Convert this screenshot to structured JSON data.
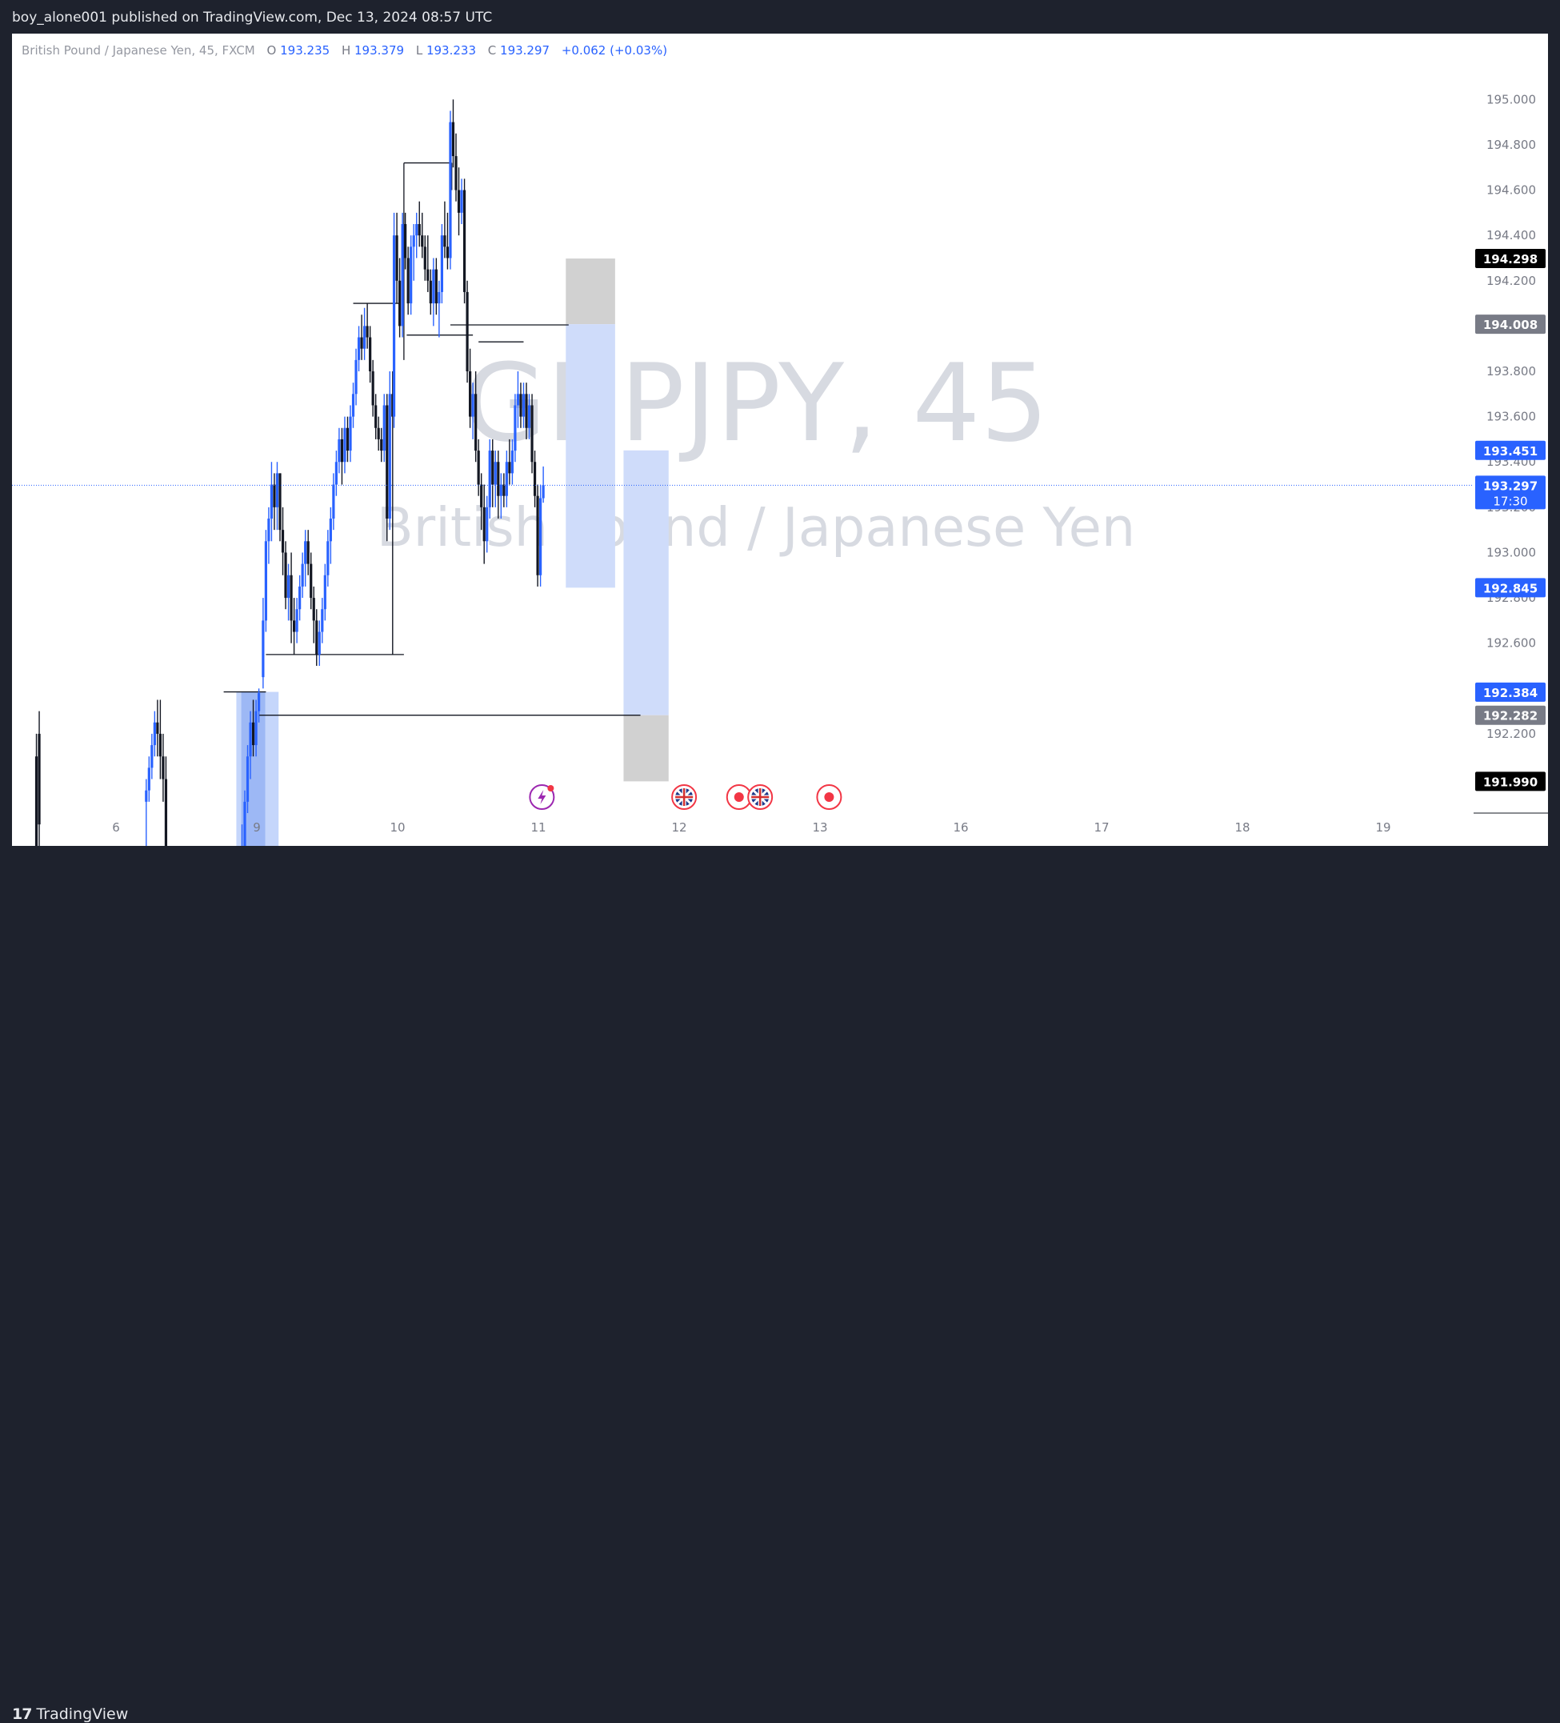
{
  "publish_line": "boy_alone001 published on TradingView.com, Dec 13, 2024 08:57 UTC",
  "footer": {
    "brand": "TradingView"
  },
  "colors": {
    "up": "#2962ff",
    "down": "#131722",
    "zone_blue": "#c5d6fb",
    "zone_grey": "#c9c9c9",
    "accent": "#2962ff"
  },
  "chart_data": {
    "type": "candlestick",
    "symbol": "GBPJPY",
    "interval": "45",
    "header": {
      "instrument": "British Pound / Japanese Yen, 45, FXCM",
      "o_label": "O",
      "o": "193.235",
      "h_label": "H",
      "h": "193.379",
      "l_label": "L",
      "l": "193.233",
      "c_label": "C",
      "c": "193.297",
      "change": "+0.062 (+0.03%)"
    },
    "watermark": {
      "symbol_line": "GBPJPY, 45",
      "name_line": "British Pound / Japanese Yen"
    },
    "price_axis": {
      "min": 191.85,
      "max": 195.1,
      "ticks": [
        "195.000",
        "194.800",
        "194.600",
        "194.400",
        "194.200",
        "194.000",
        "193.800",
        "193.600",
        "193.400",
        "193.200",
        "193.000",
        "192.800",
        "192.600",
        "192.400",
        "192.200"
      ]
    },
    "time_axis": {
      "labels": [
        {
          "text": "6",
          "bar": 0
        },
        {
          "text": "9",
          "bar": 10
        },
        {
          "text": "10",
          "bar": 20
        },
        {
          "text": "11",
          "bar": 30
        },
        {
          "text": "12",
          "bar": 40
        },
        {
          "text": "13",
          "bar": 50
        },
        {
          "text": "16",
          "bar": 60
        },
        {
          "text": "17",
          "bar": 70
        },
        {
          "text": "18",
          "bar": 80
        },
        {
          "text": "19",
          "bar": 90
        }
      ]
    },
    "price_labels": [
      {
        "value": "194.298",
        "style": "black"
      },
      {
        "value": "194.008",
        "style": "grey"
      },
      {
        "value": "193.451",
        "style": "blue"
      },
      {
        "value": "193.297",
        "style": "blue",
        "sub": "17:30"
      },
      {
        "value": "192.845",
        "style": "blue"
      },
      {
        "value": "192.384",
        "style": "blue"
      },
      {
        "value": "192.282",
        "style": "grey"
      },
      {
        "value": "191.990",
        "style": "black"
      }
    ],
    "last_price": 193.297,
    "candles": [
      [
        -4.8,
        192.1,
        192.2,
        191.6,
        191.7
      ],
      [
        -4.6,
        192.2,
        192.3,
        191.6,
        191.8
      ],
      [
        3.0,
        191.9,
        192.0,
        191.7,
        191.95
      ],
      [
        3.2,
        191.95,
        192.1,
        191.9,
        192.05
      ],
      [
        3.4,
        192.05,
        192.2,
        192.0,
        192.15
      ],
      [
        3.6,
        192.15,
        192.3,
        192.1,
        192.25
      ],
      [
        3.8,
        192.25,
        192.35,
        192.1,
        192.2
      ],
      [
        4.0,
        192.2,
        192.35,
        192.0,
        192.1
      ],
      [
        4.2,
        192.1,
        192.2,
        191.9,
        192.0
      ],
      [
        4.4,
        192.0,
        192.1,
        191.6,
        191.7
      ],
      [
        9.6,
        191.5,
        191.6,
        191.4,
        191.55
      ],
      [
        9.8,
        191.55,
        191.8,
        191.5,
        191.7
      ],
      [
        10.0,
        191.7,
        191.95,
        191.65,
        191.9
      ],
      [
        10.2,
        191.9,
        192.15,
        191.85,
        192.1
      ],
      [
        10.4,
        192.1,
        192.3,
        192.0,
        192.25
      ],
      [
        10.6,
        192.25,
        192.35,
        192.1,
        192.15
      ],
      [
        10.8,
        192.15,
        192.35,
        192.1,
        192.3
      ],
      [
        11.0,
        192.3,
        192.4,
        192.25,
        192.38
      ],
      [
        11.3,
        192.45,
        192.8,
        192.4,
        192.7
      ],
      [
        11.5,
        192.7,
        193.1,
        192.65,
        193.05
      ],
      [
        11.7,
        193.05,
        193.2,
        192.95,
        193.15
      ],
      [
        11.9,
        193.15,
        193.4,
        193.05,
        193.3
      ],
      [
        12.1,
        193.3,
        193.35,
        193.1,
        193.2
      ],
      [
        12.3,
        193.2,
        193.4,
        193.1,
        193.35
      ],
      [
        12.5,
        193.35,
        193.35,
        193.05,
        193.1
      ],
      [
        12.7,
        193.1,
        193.2,
        192.9,
        193.0
      ],
      [
        12.9,
        193.0,
        193.05,
        192.75,
        192.8
      ],
      [
        13.1,
        192.8,
        192.95,
        192.7,
        192.9
      ],
      [
        13.3,
        192.9,
        193.0,
        192.6,
        192.7
      ],
      [
        13.5,
        192.7,
        192.8,
        192.55,
        192.65
      ],
      [
        13.7,
        192.65,
        192.8,
        192.6,
        192.75
      ],
      [
        13.9,
        192.75,
        192.9,
        192.7,
        192.85
      ],
      [
        14.1,
        192.85,
        193.0,
        192.8,
        192.95
      ],
      [
        14.3,
        192.95,
        193.1,
        192.85,
        193.05
      ],
      [
        14.5,
        193.05,
        193.1,
        192.9,
        192.95
      ],
      [
        14.7,
        192.95,
        193.0,
        192.75,
        192.8
      ],
      [
        14.9,
        192.8,
        192.85,
        192.6,
        192.7
      ],
      [
        15.1,
        192.7,
        192.75,
        192.5,
        192.55
      ],
      [
        15.3,
        192.55,
        192.7,
        192.5,
        192.65
      ],
      [
        15.5,
        192.65,
        192.8,
        192.6,
        192.75
      ],
      [
        15.7,
        192.75,
        192.95,
        192.7,
        192.9
      ],
      [
        15.9,
        192.9,
        193.1,
        192.85,
        193.05
      ],
      [
        16.1,
        193.05,
        193.2,
        192.95,
        193.15
      ],
      [
        16.3,
        193.15,
        193.35,
        193.1,
        193.3
      ],
      [
        16.5,
        193.3,
        193.45,
        193.25,
        193.4
      ],
      [
        16.7,
        193.4,
        193.55,
        193.35,
        193.5
      ],
      [
        16.9,
        193.5,
        193.55,
        193.3,
        193.4
      ],
      [
        17.1,
        193.4,
        193.6,
        193.35,
        193.55
      ],
      [
        17.3,
        193.55,
        193.6,
        193.4,
        193.45
      ],
      [
        17.5,
        193.45,
        193.65,
        193.4,
        193.6
      ],
      [
        17.7,
        193.6,
        193.75,
        193.55,
        193.7
      ],
      [
        17.9,
        193.7,
        193.9,
        193.65,
        193.85
      ],
      [
        18.1,
        193.85,
        194.0,
        193.8,
        193.95
      ],
      [
        18.3,
        193.95,
        194.05,
        193.85,
        193.9
      ],
      [
        18.5,
        193.9,
        194.08,
        193.85,
        194.0
      ],
      [
        18.7,
        194.0,
        194.1,
        193.9,
        193.95
      ],
      [
        18.9,
        193.95,
        194.0,
        193.75,
        193.8
      ],
      [
        19.1,
        193.8,
        193.85,
        193.6,
        193.65
      ],
      [
        19.3,
        193.65,
        193.7,
        193.5,
        193.55
      ],
      [
        19.5,
        193.55,
        193.6,
        193.45,
        193.5
      ],
      [
        19.7,
        193.5,
        193.55,
        193.4,
        193.45
      ],
      [
        19.9,
        193.45,
        193.7,
        193.4,
        193.65
      ],
      [
        20.1,
        193.65,
        193.7,
        193.05,
        193.15
      ],
      [
        20.3,
        193.15,
        193.8,
        193.1,
        193.7
      ],
      [
        20.5,
        193.7,
        193.8,
        192.55,
        193.6
      ],
      [
        20.6,
        193.6,
        194.5,
        193.55,
        194.4
      ],
      [
        20.8,
        194.4,
        194.5,
        194.1,
        194.2
      ],
      [
        21.0,
        194.2,
        194.3,
        193.95,
        194.0
      ],
      [
        21.2,
        194.0,
        194.5,
        193.95,
        194.45
      ],
      [
        21.4,
        194.45,
        194.5,
        194.25,
        194.3
      ],
      [
        21.6,
        194.3,
        194.35,
        194.05,
        194.1
      ],
      [
        21.8,
        194.1,
        194.4,
        194.05,
        194.35
      ],
      [
        22.0,
        194.35,
        194.45,
        194.2,
        194.4
      ],
      [
        22.2,
        194.4,
        194.5,
        194.3,
        194.45
      ],
      [
        22.4,
        194.45,
        194.55,
        194.35,
        194.4
      ],
      [
        22.6,
        194.4,
        194.5,
        194.3,
        194.35
      ],
      [
        22.8,
        194.35,
        194.4,
        194.2,
        194.25
      ],
      [
        23.0,
        194.25,
        194.4,
        194.15,
        194.2
      ],
      [
        23.2,
        194.2,
        194.25,
        194.05,
        194.1
      ],
      [
        23.4,
        194.1,
        194.3,
        194.0,
        194.25
      ],
      [
        23.6,
        194.25,
        194.3,
        194.05,
        194.1
      ],
      [
        23.8,
        194.1,
        194.2,
        193.95,
        194.15
      ],
      [
        24.0,
        194.15,
        194.45,
        194.1,
        194.4
      ],
      [
        24.2,
        194.4,
        194.55,
        194.3,
        194.35
      ],
      [
        24.4,
        194.35,
        194.5,
        194.25,
        194.3
      ],
      [
        24.6,
        194.3,
        194.95,
        194.25,
        194.9
      ],
      [
        24.8,
        194.9,
        195.0,
        194.7,
        194.75
      ],
      [
        25.0,
        194.75,
        194.85,
        194.55,
        194.6
      ],
      [
        25.2,
        194.6,
        194.7,
        194.4,
        194.5
      ],
      [
        25.4,
        194.5,
        194.65,
        194.45,
        194.6
      ],
      [
        25.6,
        194.6,
        194.65,
        194.1,
        194.15
      ],
      [
        25.8,
        194.15,
        194.2,
        193.75,
        193.8
      ],
      [
        26.0,
        193.8,
        193.9,
        193.55,
        193.6
      ],
      [
        26.2,
        193.6,
        193.75,
        193.5,
        193.7
      ],
      [
        26.4,
        193.7,
        193.8,
        193.4,
        193.45
      ],
      [
        26.6,
        193.45,
        193.5,
        193.25,
        193.3
      ],
      [
        26.8,
        193.3,
        193.35,
        193.1,
        193.2
      ],
      [
        27.0,
        193.2,
        193.3,
        192.95,
        193.05
      ],
      [
        27.2,
        193.05,
        193.25,
        193.0,
        193.2
      ],
      [
        27.4,
        193.2,
        193.5,
        193.15,
        193.45
      ],
      [
        27.6,
        193.45,
        193.5,
        193.2,
        193.3
      ],
      [
        27.8,
        193.3,
        193.45,
        193.2,
        193.4
      ],
      [
        28.0,
        193.4,
        193.45,
        193.15,
        193.25
      ],
      [
        28.2,
        193.25,
        193.35,
        193.15,
        193.3
      ],
      [
        28.4,
        193.3,
        193.35,
        193.2,
        193.25
      ],
      [
        28.6,
        193.25,
        193.45,
        193.2,
        193.4
      ],
      [
        28.8,
        193.4,
        193.5,
        193.3,
        193.35
      ],
      [
        29.0,
        193.35,
        193.5,
        193.3,
        193.45
      ],
      [
        29.2,
        193.45,
        193.7,
        193.4,
        193.65
      ],
      [
        29.4,
        193.65,
        193.8,
        193.55,
        193.7
      ],
      [
        29.6,
        193.7,
        193.75,
        193.55,
        193.6
      ],
      [
        29.8,
        193.6,
        193.75,
        193.55,
        193.7
      ],
      [
        30.0,
        193.7,
        193.75,
        193.5,
        193.55
      ],
      [
        30.2,
        193.55,
        193.7,
        193.5,
        193.65
      ],
      [
        30.4,
        193.65,
        193.7,
        193.35,
        193.4
      ],
      [
        30.6,
        193.4,
        193.45,
        193.2,
        193.25
      ],
      [
        30.8,
        193.25,
        193.3,
        192.85,
        192.9
      ],
      [
        31.0,
        192.9,
        193.3,
        192.85,
        193.24
      ],
      [
        31.2,
        193.24,
        193.38,
        193.22,
        193.297
      ]
    ],
    "drawings": {
      "hlines": [
        {
          "price": 192.385,
          "from": 8.5,
          "to": 11.5
        },
        {
          "price": 192.55,
          "from": 11.5,
          "to": 21.3
        },
        {
          "price": 194.1,
          "from": 17.7,
          "to": 21.0
        },
        {
          "price": 194.72,
          "from": 21.3,
          "to": 24.7
        },
        {
          "price": 193.96,
          "from": 21.5,
          "to": 26.2
        },
        {
          "price": 194.005,
          "from": 24.6,
          "to": 33.0
        },
        {
          "price": 193.93,
          "from": 26.6,
          "to": 29.8
        },
        {
          "price": 192.282,
          "from": 11.0,
          "to": 38.1
        }
      ],
      "vlines": [
        {
          "bar": 21.3,
          "from": 194.72,
          "to": 193.85
        },
        {
          "bar": 24.7,
          "from": 194.72,
          "to": 194.6
        }
      ],
      "zones": [
        {
          "from": 9.4,
          "to": 12.4,
          "p1": 192.385,
          "p2": 191.5,
          "fill": "#c5d6fb"
        },
        {
          "from": 9.75,
          "to": 11.45,
          "p1": 192.385,
          "p2": 191.5,
          "fill": "#9db8f5"
        },
        {
          "from": 32.8,
          "to": 36.3,
          "p1": 194.298,
          "p2": 194.008,
          "fill": "#d1d1d1"
        },
        {
          "from": 32.8,
          "to": 36.3,
          "p1": 194.008,
          "p2": 192.845,
          "fill": "#cfdcfa"
        },
        {
          "from": 36.9,
          "to": 40.1,
          "p1": 193.451,
          "p2": 192.282,
          "fill": "#cfdcfa"
        },
        {
          "from": 36.9,
          "to": 40.1,
          "p1": 192.282,
          "p2": 191.99,
          "fill": "#d1d1d1"
        }
      ]
    },
    "events": [
      {
        "kind": "lightning",
        "bar": 31.1
      },
      {
        "kind": "uk-flag",
        "bar": 41.2
      },
      {
        "kind": "dot",
        "bar": 45.1
      },
      {
        "kind": "uk-flag",
        "bar": 46.6
      },
      {
        "kind": "dot",
        "bar": 51.5
      }
    ]
  }
}
